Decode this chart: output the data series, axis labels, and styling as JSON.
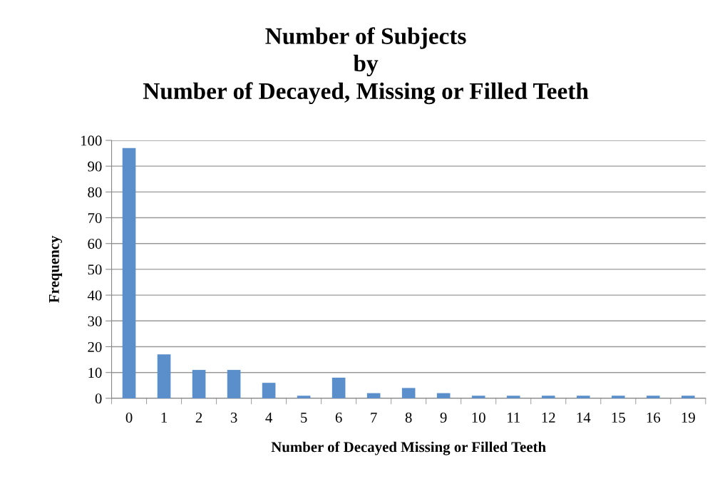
{
  "chart_data": {
    "type": "bar",
    "title": "Number of Subjects\nby\nNumber of Decayed, Missing or Filled Teeth",
    "xlabel": "Number of Decayed Missing or Filled Teeth",
    "ylabel": "Frequency",
    "categories": [
      "0",
      "1",
      "2",
      "3",
      "4",
      "5",
      "6",
      "7",
      "8",
      "9",
      "10",
      "11",
      "12",
      "14",
      "15",
      "16",
      "19"
    ],
    "values": [
      97,
      17,
      11,
      11,
      6,
      1,
      8,
      2,
      4,
      2,
      1,
      1,
      1,
      1,
      1,
      1,
      1
    ],
    "color": "#5b8fcb",
    "ylim": [
      0,
      100
    ],
    "yticks": [
      0,
      10,
      20,
      30,
      40,
      50,
      60,
      70,
      80,
      90,
      100
    ],
    "grid": "y",
    "legend": false
  }
}
